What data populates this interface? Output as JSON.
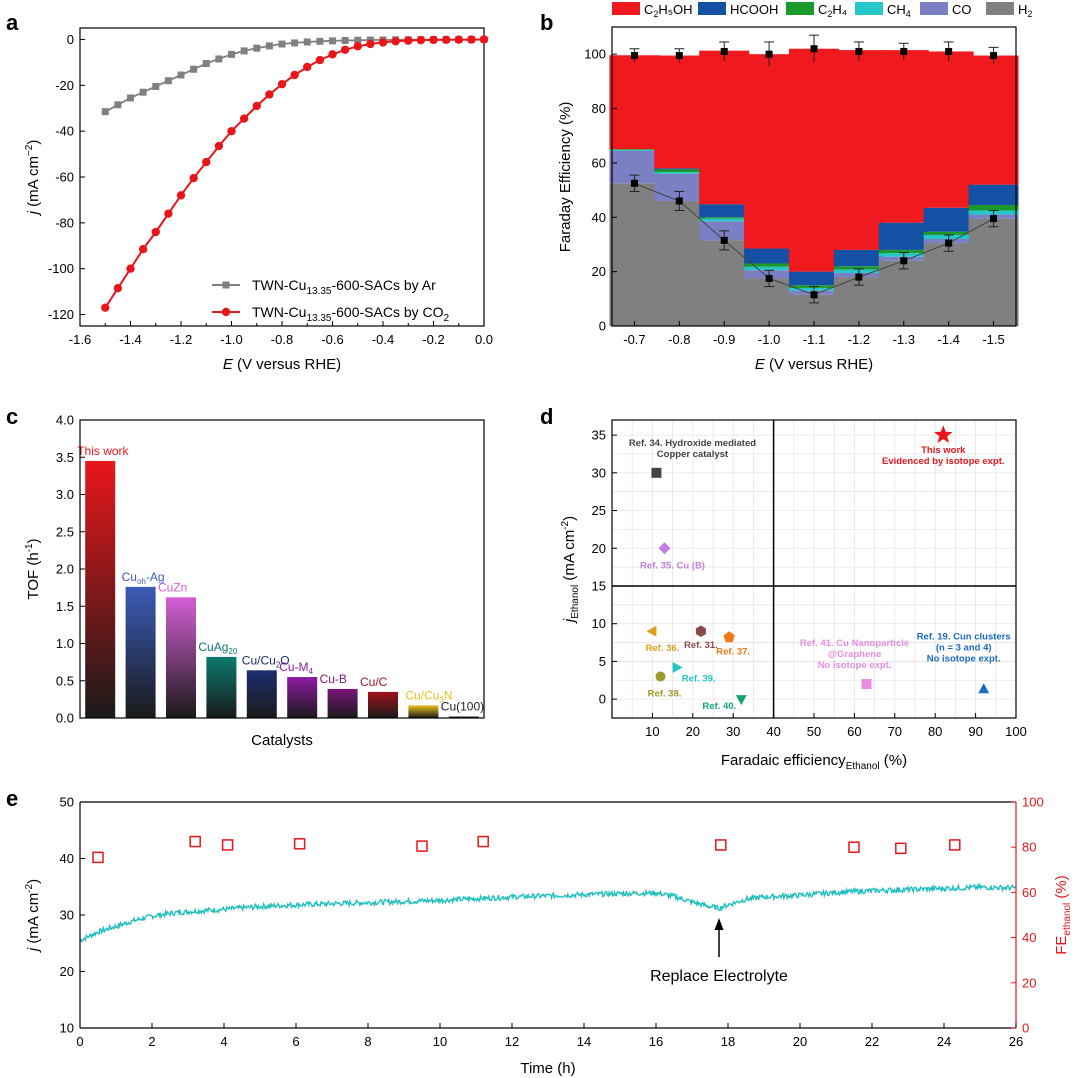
{
  "panel_letters": {
    "a": "a",
    "b": "b",
    "c": "c",
    "d": "d",
    "e": "e"
  },
  "chart_data": [
    {
      "panel": "a",
      "type": "line",
      "xlabel_italic": "E",
      "xlabel_rest": " (V versus RHE)",
      "ylabel_italic": "j",
      "ylabel_rest": " (mA cm",
      "ylabel_sup": "−2",
      "ylabel_close": ")",
      "xlim": [
        -1.6,
        0.0
      ],
      "ylim": [
        -125,
        5
      ],
      "xticks": [
        -1.6,
        -1.4,
        -1.2,
        -1.0,
        -0.8,
        -0.6,
        -0.4,
        -0.2,
        0.0
      ],
      "xtick_labels": [
        "-1.6",
        "-1.4",
        "-1.2",
        "-1.0",
        "-0.8",
        "-0.6",
        "-0.4",
        "-0.2",
        "0.0"
      ],
      "yticks": [
        0,
        -20,
        -40,
        -60,
        -80,
        -100,
        -120
      ],
      "ytick_labels": [
        "0",
        "-20",
        "-40",
        "-60",
        "-80",
        "-100",
        "-120"
      ],
      "legend_position": "bottom-right",
      "series": [
        {
          "name": "TWN-Cu13.35-600-SACs by Ar",
          "name_main": "TWN-Cu",
          "name_sub": "13.35",
          "name_tail": "-600-SACs by Ar",
          "name_sub2": "",
          "name_end": "",
          "color": "#808080",
          "marker": "square",
          "x": [
            -1.5,
            -1.45,
            -1.4,
            -1.35,
            -1.3,
            -1.25,
            -1.2,
            -1.15,
            -1.1,
            -1.05,
            -1.0,
            -0.95,
            -0.9,
            -0.85,
            -0.8,
            -0.75,
            -0.7,
            -0.65,
            -0.6,
            -0.55,
            -0.5,
            -0.45,
            -0.4,
            -0.35,
            -0.3,
            -0.25,
            -0.2,
            -0.15,
            -0.1,
            -0.05,
            0.0
          ],
          "y": [
            -31.5,
            -28.5,
            -25.5,
            -23,
            -20.5,
            -18,
            -15.5,
            -13,
            -10.5,
            -8.5,
            -6.5,
            -5,
            -3.8,
            -2.8,
            -2,
            -1.5,
            -1.1,
            -0.8,
            -0.6,
            -0.45,
            -0.35,
            -0.25,
            -0.2,
            -0.15,
            -0.12,
            -0.1,
            -0.08,
            -0.06,
            -0.05,
            -0.04,
            -0.03
          ]
        },
        {
          "name": "TWN-Cu13.35-600-SACs by CO2",
          "name_main": "TWN-Cu",
          "name_sub": "13.35",
          "name_tail": "-600-SACs by CO",
          "name_sub2": "2",
          "name_end": "",
          "color": "#e8161b",
          "marker": "circle",
          "x": [
            -1.5,
            -1.45,
            -1.4,
            -1.35,
            -1.3,
            -1.25,
            -1.2,
            -1.15,
            -1.1,
            -1.05,
            -1.0,
            -0.95,
            -0.9,
            -0.85,
            -0.8,
            -0.75,
            -0.7,
            -0.65,
            -0.6,
            -0.55,
            -0.5,
            -0.45,
            -0.4,
            -0.35,
            -0.3,
            -0.25,
            -0.2,
            -0.15,
            -0.1,
            -0.05,
            0.0
          ],
          "y": [
            -117,
            -108.5,
            -100,
            -91.5,
            -84,
            -76,
            -68,
            -60.5,
            -53.5,
            -46.5,
            -40,
            -34.5,
            -29,
            -24,
            -19.5,
            -15.5,
            -12,
            -9,
            -6.5,
            -4.5,
            -3,
            -2,
            -1.3,
            -0.8,
            -0.5,
            -0.3,
            -0.2,
            -0.15,
            -0.1,
            -0.05,
            0.0
          ]
        }
      ]
    },
    {
      "panel": "b",
      "type": "bar",
      "stacked": true,
      "xlabel_italic": "E",
      "xlabel_rest": " (V versus RHE)",
      "ylabel": "Faraday Efficiency (%)",
      "ylim": [
        0,
        110
      ],
      "yticks": [
        0,
        20,
        40,
        60,
        80,
        100
      ],
      "ytick_labels": [
        "0",
        "20",
        "40",
        "60",
        "80",
        "100"
      ],
      "categories": [
        "-0.7",
        "-0.8",
        "-0.9",
        "-1.0",
        "-1.1",
        "-1.2",
        "-1.3",
        "-1.4",
        "-1.5"
      ],
      "legend_position": "top",
      "series": [
        {
          "name": "H2",
          "label_main": "H",
          "label_sub": "2",
          "label_tail": "",
          "color": "#808080",
          "values": [
            52.5,
            46,
            31.5,
            17.5,
            11.5,
            18,
            24,
            30.5,
            39.5
          ]
        },
        {
          "name": "CO",
          "label_main": "CO",
          "label_sub": "",
          "label_tail": "",
          "color": "#7b7fc4",
          "values": [
            12,
            10,
            7,
            3,
            1.5,
            1.5,
            1.5,
            1.5,
            1.5
          ]
        },
        {
          "name": "CH4",
          "label_main": "CH",
          "label_sub": "4",
          "label_tail": "",
          "color": "#27c7c9",
          "values": [
            0.3,
            0.6,
            1,
            1.3,
            1,
            1.3,
            1.3,
            1.5,
            1.5
          ]
        },
        {
          "name": "C2H4",
          "label_main": "C",
          "label_sub": "2",
          "label_tail": "H₄",
          "color": "#1a9a2a",
          "values": [
            0.3,
            1,
            0.5,
            1.2,
            1,
            1.2,
            1.2,
            1.2,
            2
          ]
        },
        {
          "name": "HCOOH",
          "label_main": "HCOOH",
          "label_sub": "",
          "label_tail": "",
          "color": "#1450a3",
          "values": [
            0,
            0.4,
            4.8,
            5.5,
            5,
            6,
            10,
            8.8,
            7.5
          ]
        },
        {
          "name": "C2H5OH",
          "label_main": "C",
          "label_sub": "2",
          "label_tail": "H₅OH",
          "color": "#f0191e",
          "values": [
            34.5,
            41.5,
            56.5,
            71.5,
            82,
            73.5,
            63.5,
            57.5,
            47.5
          ]
        }
      ],
      "totals": [
        99.5,
        99.5,
        101,
        100,
        102,
        101,
        101,
        101,
        99.5
      ],
      "total_errors": [
        2.5,
        2.5,
        3.5,
        4.5,
        5,
        3.5,
        3,
        3.5,
        3
      ],
      "h2_errors": [
        3,
        3.5,
        3.5,
        3,
        3,
        3,
        3,
        3,
        3
      ]
    },
    {
      "panel": "c",
      "type": "bar",
      "xlabel": "Catalysts",
      "ylabel": "TOF (h",
      "ylabel_sup": "-1",
      "ylabel_close": ")",
      "ylim": [
        0,
        4.0
      ],
      "yticks": [
        0,
        0.5,
        1.0,
        1.5,
        2.0,
        2.5,
        3.0,
        3.5,
        4.0
      ],
      "ytick_labels": [
        "0.0",
        "0.5",
        "1.0",
        "1.5",
        "2.0",
        "2.5",
        "3.0",
        "3.5",
        "4.0"
      ],
      "categories": [
        {
          "main": "This work",
          "sub": "",
          "tail": "",
          "sub2": "",
          "color": "#e8161b"
        },
        {
          "main": "Cu",
          "sub": "oh",
          "tail": "-Ag",
          "sub2": "",
          "color": "#3b5bb8"
        },
        {
          "main": "CuZn",
          "sub": "",
          "tail": "",
          "sub2": "",
          "color": "#d35fd6"
        },
        {
          "main": "CuAg",
          "sub": "20",
          "tail": "",
          "sub2": "",
          "color": "#0a7a6e"
        },
        {
          "main": "Cu/Cu",
          "sub": "2",
          "tail": "O",
          "sub2": "",
          "color": "#1d2d6e"
        },
        {
          "main": "Cu-M",
          "sub": "4",
          "tail": "",
          "sub2": "",
          "color": "#8e1aa3"
        },
        {
          "main": "Cu-B",
          "sub": "",
          "tail": "",
          "sub2": "",
          "color": "#7a157d"
        },
        {
          "main": "Cu/C",
          "sub": "",
          "tail": "",
          "sub2": "",
          "color": "#a3121b"
        },
        {
          "main": "Cu/Cu",
          "sub": "3",
          "tail": "N",
          "sub2": "",
          "color": "#e8c21a"
        },
        {
          "main": "Cu(100)",
          "sub": "",
          "tail": "",
          "sub2": "",
          "color": "#222222"
        }
      ],
      "values": [
        3.45,
        1.76,
        1.62,
        0.82,
        0.64,
        0.55,
        0.39,
        0.35,
        0.17,
        0.02
      ]
    },
    {
      "panel": "d",
      "type": "scatter",
      "xlabel_main": "Faradaic efficiency",
      "xlabel_sub": "Ethanol",
      "xlabel_tail": " (%)",
      "ylabel_italic": "j",
      "ylabel_sub": "Ethanol",
      "ylabel_rest": " (mA cm",
      "ylabel_sup": "-2",
      "ylabel_close": ")",
      "xlim": [
        0,
        100
      ],
      "ylim": [
        -2.5,
        37
      ],
      "xticks": [
        10,
        20,
        30,
        40,
        50,
        60,
        70,
        80,
        90,
        100
      ],
      "xtick_labels": [
        "10",
        "20",
        "30",
        "40",
        "50",
        "60",
        "70",
        "80",
        "90",
        "100"
      ],
      "yticks": [
        0,
        5,
        10,
        15,
        20,
        25,
        30,
        35
      ],
      "ytick_labels": [
        "0",
        "5",
        "10",
        "15",
        "20",
        "25",
        "30",
        "35"
      ],
      "divider_x": 40,
      "divider_y": 15,
      "points": [
        {
          "x": 82,
          "y": 35,
          "marker": "star",
          "color": "#e8161b",
          "lines": [
            "This work",
            "Evidenced by isotope expt."
          ]
        },
        {
          "x": 11,
          "y": 30,
          "marker": "square",
          "color": "#444444",
          "lines": [
            "Ref. 34. Hydroxide mediated",
            "Copper catalyst"
          ]
        },
        {
          "x": 13,
          "y": 20,
          "marker": "diamond",
          "color": "#c27ee0",
          "lines": [
            "Ref. 35. Cu (B)"
          ]
        },
        {
          "x": 10,
          "y": 9,
          "marker": "triangle-left",
          "color": "#d9a11a",
          "lines": [
            "Ref. 36."
          ]
        },
        {
          "x": 22,
          "y": 9,
          "marker": "hexagon",
          "color": "#8a4a4a",
          "lines": [
            "Ref. 31."
          ]
        },
        {
          "x": 29,
          "y": 8.2,
          "marker": "pentagon",
          "color": "#f07a1a",
          "lines": [
            "Ref. 37."
          ]
        },
        {
          "x": 16,
          "y": 4.2,
          "marker": "triangle-right",
          "color": "#22c6c6",
          "lines": [
            "Ref. 39."
          ]
        },
        {
          "x": 12,
          "y": 3,
          "marker": "circle",
          "color": "#9a9a2a",
          "lines": [
            "Ref. 38."
          ]
        },
        {
          "x": 32,
          "y": 0,
          "marker": "triangle-down",
          "color": "#1aa37a",
          "lines": [
            "Ref. 40."
          ]
        },
        {
          "x": 63,
          "y": 2,
          "marker": "square",
          "color": "#e88ee0",
          "lines": [
            "Ref. 41. Cu Nanoparticle",
            "@Graphene",
            "No isotope expt."
          ]
        },
        {
          "x": 92,
          "y": 1.3,
          "marker": "triangle-up",
          "color": "#1a6ac2",
          "lines": [
            "Ref. 19. Cun clusters",
            "(n = 3 and 4)",
            "No isotope expt."
          ]
        }
      ]
    },
    {
      "panel": "e",
      "type": "line",
      "xlabel": "Time (h)",
      "xlim": [
        0,
        26
      ],
      "xticks": [
        0,
        2,
        4,
        6,
        8,
        10,
        12,
        14,
        16,
        18,
        20,
        22,
        24,
        26
      ],
      "xtick_labels": [
        "0",
        "2",
        "4",
        "6",
        "8",
        "10",
        "12",
        "14",
        "16",
        "18",
        "20",
        "22",
        "24",
        "26"
      ],
      "ylabel_italic": "j",
      "ylabel_rest": " (mA cm",
      "ylabel_sup": "-2",
      "ylabel_close": ")",
      "ylim": [
        10,
        50
      ],
      "yticks": [
        10,
        20,
        30,
        40,
        50
      ],
      "ytick_labels": [
        "10",
        "20",
        "30",
        "40",
        "50"
      ],
      "y2label_main": "FE",
      "y2label_sub": "ethanol",
      "y2label_tail": " (%)",
      "y2lim": [
        0,
        100
      ],
      "y2ticks": [
        0,
        20,
        40,
        60,
        80,
        100
      ],
      "y2tick_labels": [
        "0",
        "20",
        "40",
        "60",
        "80",
        "100"
      ],
      "current_color": "#1fbfbf",
      "fe_color": "#e8161b",
      "current_trend": {
        "x": [
          0,
          0.5,
          1,
          1.5,
          2,
          2.5,
          3,
          4,
          5,
          6,
          8,
          10,
          12,
          14,
          15,
          16,
          16.5,
          17,
          17.5,
          17.75,
          18,
          18.5,
          19,
          20,
          21,
          22,
          23,
          24,
          25,
          26
        ],
        "y": [
          25.5,
          27,
          28,
          29,
          29.8,
          30.3,
          30.6,
          31,
          31.5,
          31.8,
          32.2,
          32.6,
          33.2,
          33.6,
          33.8,
          33.9,
          33.3,
          32.3,
          31.5,
          31.2,
          31.8,
          32.8,
          33.2,
          33.5,
          34,
          34.3,
          34.5,
          34.7,
          34.9,
          34.8
        ]
      },
      "fe_points": {
        "x": [
          0.5,
          3.2,
          4.1,
          6.1,
          9.5,
          11.2,
          17.8,
          21.5,
          22.8,
          24.3
        ],
        "y": [
          75.5,
          82.5,
          81,
          81.5,
          80.5,
          82.5,
          81,
          80,
          79.5,
          81
        ]
      },
      "annotation": {
        "text": "Replace Electrolyte",
        "x": 17.75
      }
    }
  ]
}
